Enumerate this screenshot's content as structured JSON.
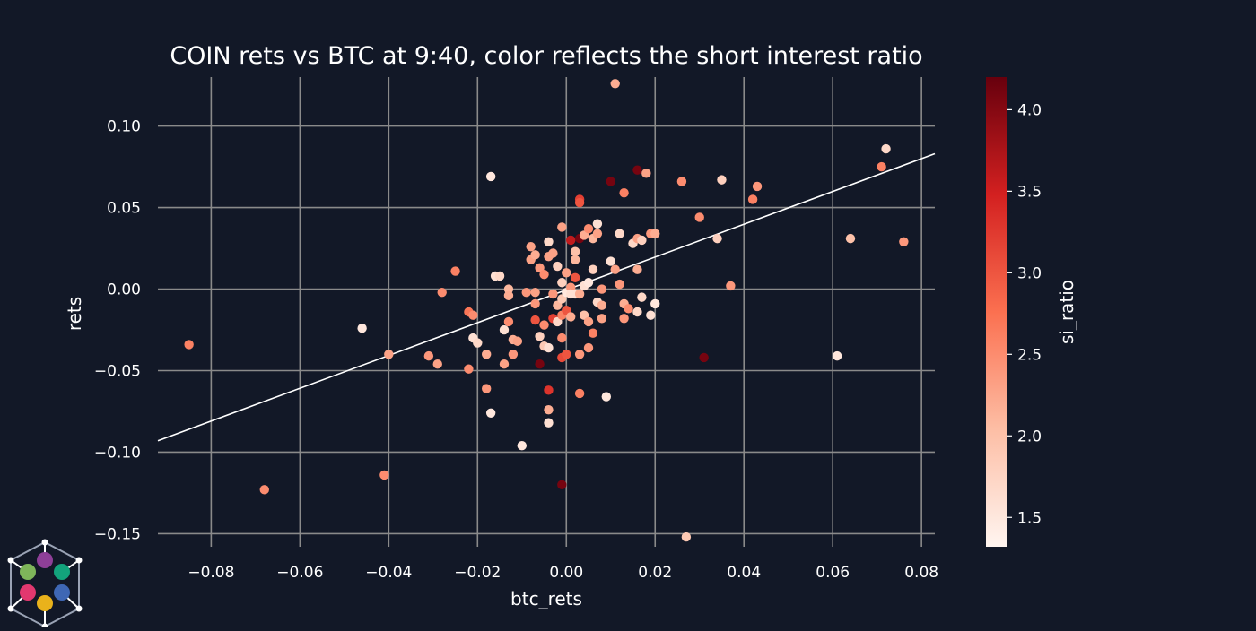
{
  "colors": {
    "background": "#121827",
    "grid": "#8a8a8a",
    "text": "#ffffff",
    "fit_line": "#ffffff",
    "colormap": [
      "#fff5f0",
      "#fdbea5",
      "#fb7050",
      "#d32020",
      "#67000d"
    ]
  },
  "chart_data": {
    "type": "scatter",
    "title": "COIN rets vs BTC at 9:40, color reflects the short interest ratio",
    "xlabel": "btc_rets",
    "ylabel": "rets",
    "xlim": [
      -0.092,
      0.083
    ],
    "ylim": [
      -0.158,
      0.13
    ],
    "grid": true,
    "xticks": [
      -0.08,
      -0.06,
      -0.04,
      -0.02,
      0.0,
      0.02,
      0.04,
      0.06,
      0.08
    ],
    "xtick_labels": [
      "−0.08",
      "−0.06",
      "−0.04",
      "−0.02",
      "0.00",
      "0.02",
      "0.04",
      "0.06",
      "0.08"
    ],
    "yticks": [
      0.1,
      0.05,
      0.0,
      -0.05,
      -0.1,
      -0.15
    ],
    "ytick_labels": [
      "0.10",
      "0.05",
      "0.00",
      "−0.05",
      "−0.10",
      "−0.15"
    ],
    "colorbar": {
      "label": "si_ratio",
      "range": [
        1.32,
        4.2
      ],
      "ticks": [
        4.0,
        3.5,
        3.0,
        2.5,
        2.0,
        1.5
      ],
      "tick_labels": [
        "4.0",
        "3.5",
        "3.0",
        "2.5",
        "2.0",
        "1.5"
      ]
    },
    "fit_line": {
      "x": [
        -0.092,
        0.083
      ],
      "y": [
        -0.093,
        0.083
      ]
    },
    "points": [
      {
        "x": -0.085,
        "y": -0.034,
        "c": 2.6
      },
      {
        "x": -0.068,
        "y": -0.123,
        "c": 2.5
      },
      {
        "x": -0.046,
        "y": -0.024,
        "c": 1.5
      },
      {
        "x": -0.041,
        "y": -0.114,
        "c": 2.5
      },
      {
        "x": -0.04,
        "y": -0.04,
        "c": 2.3
      },
      {
        "x": -0.031,
        "y": -0.041,
        "c": 2.4
      },
      {
        "x": -0.029,
        "y": -0.046,
        "c": 2.3
      },
      {
        "x": -0.028,
        "y": -0.002,
        "c": 2.5
      },
      {
        "x": -0.025,
        "y": 0.011,
        "c": 2.6
      },
      {
        "x": -0.022,
        "y": -0.014,
        "c": 2.7
      },
      {
        "x": -0.022,
        "y": -0.049,
        "c": 2.5
      },
      {
        "x": -0.021,
        "y": -0.016,
        "c": 2.5
      },
      {
        "x": -0.021,
        "y": -0.03,
        "c": 1.6
      },
      {
        "x": -0.02,
        "y": -0.033,
        "c": 1.7
      },
      {
        "x": -0.018,
        "y": -0.061,
        "c": 2.4
      },
      {
        "x": -0.018,
        "y": -0.04,
        "c": 2.2
      },
      {
        "x": -0.017,
        "y": -0.076,
        "c": 1.5
      },
      {
        "x": -0.017,
        "y": 0.069,
        "c": 1.5
      },
      {
        "x": -0.016,
        "y": 0.008,
        "c": 1.6
      },
      {
        "x": -0.015,
        "y": 0.008,
        "c": 1.7
      },
      {
        "x": -0.014,
        "y": -0.025,
        "c": 1.6
      },
      {
        "x": -0.014,
        "y": -0.046,
        "c": 2.3
      },
      {
        "x": -0.013,
        "y": 0.0,
        "c": 2.1
      },
      {
        "x": -0.013,
        "y": -0.004,
        "c": 2.2
      },
      {
        "x": -0.013,
        "y": -0.02,
        "c": 2.5
      },
      {
        "x": -0.012,
        "y": -0.04,
        "c": 2.4
      },
      {
        "x": -0.012,
        "y": -0.031,
        "c": 2.2
      },
      {
        "x": -0.011,
        "y": -0.032,
        "c": 2.3
      },
      {
        "x": -0.01,
        "y": -0.096,
        "c": 1.5
      },
      {
        "x": -0.009,
        "y": -0.002,
        "c": 2.4
      },
      {
        "x": -0.008,
        "y": 0.026,
        "c": 2.3
      },
      {
        "x": -0.008,
        "y": 0.018,
        "c": 2.3
      },
      {
        "x": -0.007,
        "y": 0.021,
        "c": 2.2
      },
      {
        "x": -0.007,
        "y": -0.002,
        "c": 2.3
      },
      {
        "x": -0.007,
        "y": -0.009,
        "c": 2.4
      },
      {
        "x": -0.007,
        "y": -0.019,
        "c": 3.0
      },
      {
        "x": -0.006,
        "y": -0.046,
        "c": 4.1
      },
      {
        "x": -0.006,
        "y": -0.029,
        "c": 1.8
      },
      {
        "x": -0.006,
        "y": 0.013,
        "c": 2.4
      },
      {
        "x": -0.005,
        "y": 0.009,
        "c": 2.5
      },
      {
        "x": -0.005,
        "y": -0.022,
        "c": 2.5
      },
      {
        "x": -0.005,
        "y": -0.035,
        "c": 1.9
      },
      {
        "x": -0.004,
        "y": 0.029,
        "c": 1.7
      },
      {
        "x": -0.004,
        "y": 0.02,
        "c": 2.3
      },
      {
        "x": -0.004,
        "y": -0.036,
        "c": 1.6
      },
      {
        "x": -0.004,
        "y": -0.082,
        "c": 1.6
      },
      {
        "x": -0.004,
        "y": -0.062,
        "c": 3.3
      },
      {
        "x": -0.004,
        "y": -0.074,
        "c": 2.2
      },
      {
        "x": -0.003,
        "y": 0.022,
        "c": 2.3
      },
      {
        "x": -0.003,
        "y": -0.003,
        "c": 2.4
      },
      {
        "x": -0.003,
        "y": -0.018,
        "c": 3.2
      },
      {
        "x": -0.002,
        "y": -0.01,
        "c": 2.1
      },
      {
        "x": -0.002,
        "y": 0.014,
        "c": 1.8
      },
      {
        "x": -0.002,
        "y": -0.02,
        "c": 1.7
      },
      {
        "x": -0.001,
        "y": 0.038,
        "c": 2.3
      },
      {
        "x": -0.001,
        "y": 0.004,
        "c": 1.8
      },
      {
        "x": -0.001,
        "y": -0.006,
        "c": 1.9
      },
      {
        "x": -0.001,
        "y": -0.016,
        "c": 2.6
      },
      {
        "x": -0.001,
        "y": -0.042,
        "c": 3.1
      },
      {
        "x": -0.001,
        "y": -0.03,
        "c": 2.5
      },
      {
        "x": -0.001,
        "y": -0.12,
        "c": 4.1
      },
      {
        "x": 0.0,
        "y": 0.01,
        "c": 2.3
      },
      {
        "x": 0.0,
        "y": -0.002,
        "c": 1.5
      },
      {
        "x": 0.0,
        "y": -0.013,
        "c": 3.0
      },
      {
        "x": 0.0,
        "y": -0.04,
        "c": 3.0
      },
      {
        "x": 0.001,
        "y": 0.001,
        "c": 2.4
      },
      {
        "x": 0.001,
        "y": -0.003,
        "c": 1.6
      },
      {
        "x": 0.001,
        "y": 0.03,
        "c": 3.6
      },
      {
        "x": 0.001,
        "y": -0.017,
        "c": 2.2
      },
      {
        "x": 0.002,
        "y": 0.023,
        "c": 2.0
      },
      {
        "x": 0.002,
        "y": 0.007,
        "c": 3.0
      },
      {
        "x": 0.002,
        "y": -0.003,
        "c": 1.6
      },
      {
        "x": 0.002,
        "y": 0.018,
        "c": 2.1
      },
      {
        "x": 0.003,
        "y": 0.055,
        "c": 3.2
      },
      {
        "x": 0.003,
        "y": 0.053,
        "c": 3.0
      },
      {
        "x": 0.003,
        "y": 0.031,
        "c": 4.1
      },
      {
        "x": 0.003,
        "y": -0.003,
        "c": 2.2
      },
      {
        "x": 0.003,
        "y": -0.04,
        "c": 2.4
      },
      {
        "x": 0.003,
        "y": -0.064,
        "c": 2.6
      },
      {
        "x": 0.004,
        "y": 0.033,
        "c": 2.2
      },
      {
        "x": 0.004,
        "y": -0.016,
        "c": 2.0
      },
      {
        "x": 0.004,
        "y": 0.002,
        "c": 1.6
      },
      {
        "x": 0.005,
        "y": -0.02,
        "c": 2.3
      },
      {
        "x": 0.005,
        "y": 0.004,
        "c": 1.5
      },
      {
        "x": 0.005,
        "y": 0.037,
        "c": 2.5
      },
      {
        "x": 0.005,
        "y": -0.036,
        "c": 2.4
      },
      {
        "x": 0.006,
        "y": 0.012,
        "c": 1.8
      },
      {
        "x": 0.006,
        "y": -0.027,
        "c": 2.6
      },
      {
        "x": 0.006,
        "y": 0.031,
        "c": 2.1
      },
      {
        "x": 0.007,
        "y": 0.034,
        "c": 2.3
      },
      {
        "x": 0.007,
        "y": 0.04,
        "c": 1.6
      },
      {
        "x": 0.007,
        "y": -0.008,
        "c": 1.7
      },
      {
        "x": 0.008,
        "y": 0.0,
        "c": 2.4
      },
      {
        "x": 0.008,
        "y": -0.01,
        "c": 2.2
      },
      {
        "x": 0.008,
        "y": -0.018,
        "c": 2.3
      },
      {
        "x": 0.009,
        "y": -0.066,
        "c": 1.5
      },
      {
        "x": 0.01,
        "y": 0.017,
        "c": 1.6
      },
      {
        "x": 0.01,
        "y": 0.066,
        "c": 4.1
      },
      {
        "x": 0.011,
        "y": 0.012,
        "c": 2.3
      },
      {
        "x": 0.011,
        "y": 0.126,
        "c": 2.2
      },
      {
        "x": 0.012,
        "y": 0.034,
        "c": 1.7
      },
      {
        "x": 0.012,
        "y": 0.003,
        "c": 2.4
      },
      {
        "x": 0.013,
        "y": 0.059,
        "c": 2.6
      },
      {
        "x": 0.013,
        "y": -0.018,
        "c": 2.4
      },
      {
        "x": 0.013,
        "y": -0.009,
        "c": 2.2
      },
      {
        "x": 0.014,
        "y": -0.012,
        "c": 2.5
      },
      {
        "x": 0.015,
        "y": 0.028,
        "c": 1.7
      },
      {
        "x": 0.016,
        "y": 0.073,
        "c": 4.1
      },
      {
        "x": 0.016,
        "y": 0.031,
        "c": 2.3
      },
      {
        "x": 0.016,
        "y": -0.014,
        "c": 1.7
      },
      {
        "x": 0.016,
        "y": 0.012,
        "c": 2.2
      },
      {
        "x": 0.017,
        "y": -0.005,
        "c": 1.7
      },
      {
        "x": 0.017,
        "y": 0.03,
        "c": 1.8
      },
      {
        "x": 0.018,
        "y": 0.071,
        "c": 2.3
      },
      {
        "x": 0.019,
        "y": -0.016,
        "c": 1.6
      },
      {
        "x": 0.019,
        "y": 0.034,
        "c": 2.4
      },
      {
        "x": 0.02,
        "y": 0.034,
        "c": 2.2
      },
      {
        "x": 0.02,
        "y": -0.009,
        "c": 1.5
      },
      {
        "x": 0.026,
        "y": 0.066,
        "c": 2.5
      },
      {
        "x": 0.027,
        "y": -0.152,
        "c": 1.9
      },
      {
        "x": 0.03,
        "y": 0.044,
        "c": 2.5
      },
      {
        "x": 0.031,
        "y": -0.042,
        "c": 4.1
      },
      {
        "x": 0.034,
        "y": 0.031,
        "c": 1.8
      },
      {
        "x": 0.035,
        "y": 0.067,
        "c": 1.8
      },
      {
        "x": 0.037,
        "y": 0.002,
        "c": 2.4
      },
      {
        "x": 0.042,
        "y": 0.055,
        "c": 2.6
      },
      {
        "x": 0.043,
        "y": 0.063,
        "c": 2.4
      },
      {
        "x": 0.061,
        "y": -0.041,
        "c": 1.5
      },
      {
        "x": 0.064,
        "y": 0.031,
        "c": 2.0
      },
      {
        "x": 0.071,
        "y": 0.075,
        "c": 2.6
      },
      {
        "x": 0.072,
        "y": 0.086,
        "c": 1.7
      },
      {
        "x": 0.076,
        "y": 0.029,
        "c": 2.4
      }
    ]
  }
}
